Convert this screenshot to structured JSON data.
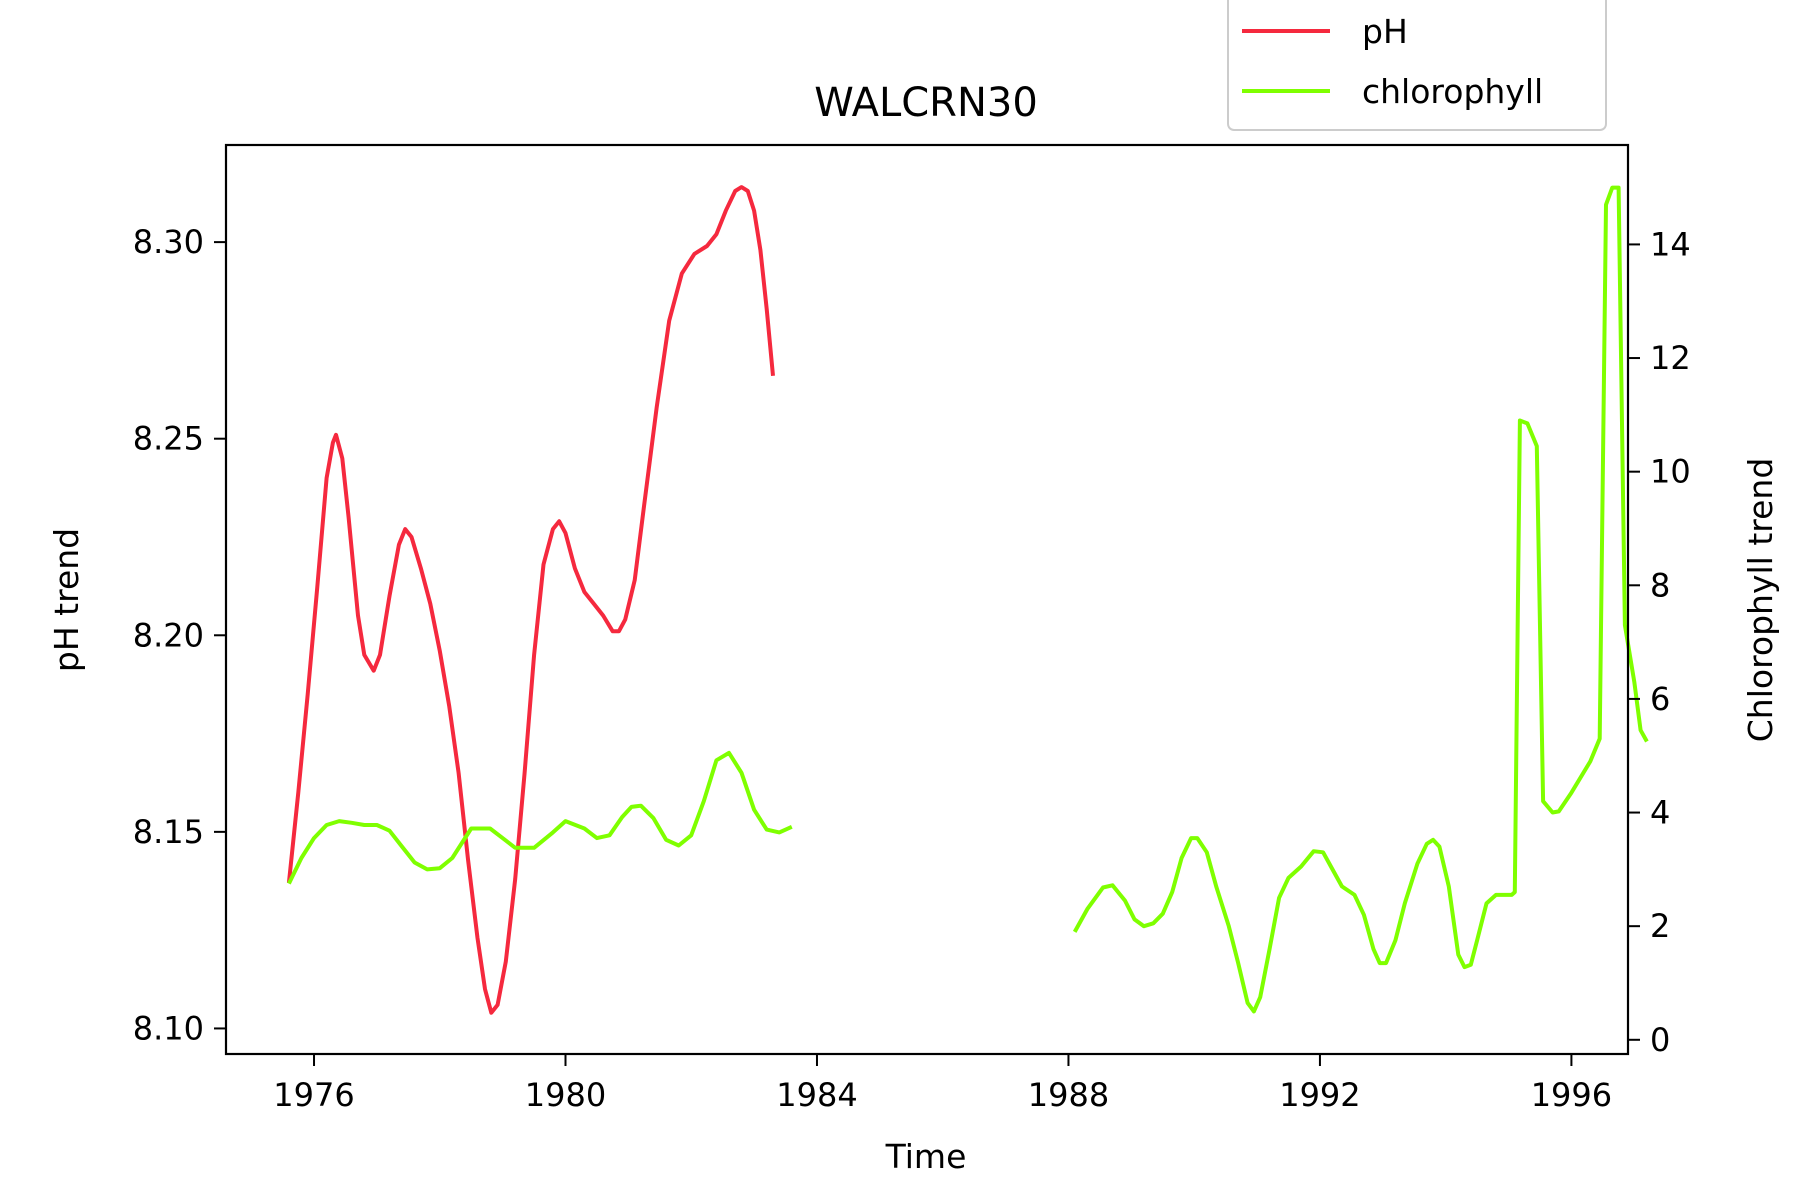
{
  "chart_data": {
    "type": "line",
    "title": "WALCRN30",
    "xlabel": "Time",
    "ylabel_left": "pH trend",
    "ylabel_right": "Chlorophyll trend",
    "xlim": [
      1974.6,
      1996.9
    ],
    "ylim_left": [
      8.0935,
      8.3247
    ],
    "ylim_right": [
      -0.25,
      15.75
    ],
    "x_ticks": [
      1976,
      1980,
      1984,
      1988,
      1992,
      1996
    ],
    "y_ticks_left": [
      "8.10",
      "8.15",
      "8.20",
      "8.25",
      "8.30"
    ],
    "y_ticks_right": [
      0,
      2,
      4,
      6,
      8,
      10,
      12,
      14
    ],
    "grid": false,
    "legend": {
      "placement": "top-right",
      "entries": [
        "pH",
        "chlorophyll"
      ]
    },
    "series": [
      {
        "name": "pH",
        "axis": "left",
        "color": "#f5293e",
        "points": [
          [
            1975.6,
            8.137
          ],
          [
            1975.75,
            8.16
          ],
          [
            1975.9,
            8.185
          ],
          [
            1976.05,
            8.212
          ],
          [
            1976.2,
            8.24
          ],
          [
            1976.3,
            8.249
          ],
          [
            1976.35,
            8.251
          ],
          [
            1976.45,
            8.245
          ],
          [
            1976.55,
            8.23
          ],
          [
            1976.7,
            8.205
          ],
          [
            1976.8,
            8.195
          ],
          [
            1976.95,
            8.191
          ],
          [
            1977.05,
            8.195
          ],
          [
            1977.2,
            8.21
          ],
          [
            1977.35,
            8.223
          ],
          [
            1977.45,
            8.227
          ],
          [
            1977.55,
            8.225
          ],
          [
            1977.7,
            8.217
          ],
          [
            1977.85,
            8.208
          ],
          [
            1978.0,
            8.196
          ],
          [
            1978.15,
            8.182
          ],
          [
            1978.3,
            8.165
          ],
          [
            1978.45,
            8.143
          ],
          [
            1978.6,
            8.123
          ],
          [
            1978.72,
            8.11
          ],
          [
            1978.82,
            8.104
          ],
          [
            1978.92,
            8.106
          ],
          [
            1979.05,
            8.117
          ],
          [
            1979.2,
            8.138
          ],
          [
            1979.35,
            8.165
          ],
          [
            1979.5,
            8.195
          ],
          [
            1979.65,
            8.218
          ],
          [
            1979.8,
            8.227
          ],
          [
            1979.9,
            8.229
          ],
          [
            1980.0,
            8.226
          ],
          [
            1980.15,
            8.217
          ],
          [
            1980.3,
            8.211
          ],
          [
            1980.45,
            8.208
          ],
          [
            1980.6,
            8.205
          ],
          [
            1980.75,
            8.201
          ],
          [
            1980.85,
            8.201
          ],
          [
            1980.95,
            8.204
          ],
          [
            1981.1,
            8.214
          ],
          [
            1981.25,
            8.233
          ],
          [
            1981.45,
            8.258
          ],
          [
            1981.65,
            8.28
          ],
          [
            1981.85,
            8.292
          ],
          [
            1982.05,
            8.297
          ],
          [
            1982.25,
            8.299
          ],
          [
            1982.4,
            8.302
          ],
          [
            1982.55,
            8.308
          ],
          [
            1982.7,
            8.313
          ],
          [
            1982.8,
            8.314
          ],
          [
            1982.9,
            8.313
          ],
          [
            1983.0,
            8.308
          ],
          [
            1983.1,
            8.298
          ],
          [
            1983.2,
            8.283
          ],
          [
            1983.3,
            8.266
          ]
        ]
      },
      {
        "name": "chlorophyll",
        "axis": "right",
        "color": "#7fff00",
        "segments": [
          [
            [
              1975.6,
              2.75
            ],
            [
              1975.8,
              3.2
            ],
            [
              1976.0,
              3.55
            ],
            [
              1976.2,
              3.78
            ],
            [
              1976.4,
              3.85
            ],
            [
              1976.6,
              3.82
            ],
            [
              1976.8,
              3.78
            ],
            [
              1977.0,
              3.78
            ],
            [
              1977.2,
              3.68
            ],
            [
              1977.4,
              3.4
            ],
            [
              1977.6,
              3.12
            ],
            [
              1977.8,
              3.0
            ],
            [
              1978.0,
              3.02
            ],
            [
              1978.2,
              3.2
            ],
            [
              1978.5,
              3.72
            ],
            [
              1978.8,
              3.72
            ],
            [
              1979.0,
              3.55
            ],
            [
              1979.2,
              3.38
            ],
            [
              1979.5,
              3.38
            ],
            [
              1979.8,
              3.65
            ],
            [
              1980.0,
              3.85
            ],
            [
              1980.3,
              3.72
            ],
            [
              1980.5,
              3.55
            ],
            [
              1980.7,
              3.6
            ],
            [
              1980.9,
              3.92
            ],
            [
              1981.05,
              4.1
            ],
            [
              1981.2,
              4.12
            ],
            [
              1981.4,
              3.9
            ],
            [
              1981.6,
              3.52
            ],
            [
              1981.8,
              3.42
            ],
            [
              1982.0,
              3.6
            ],
            [
              1982.2,
              4.2
            ],
            [
              1982.4,
              4.92
            ],
            [
              1982.6,
              5.05
            ],
            [
              1982.8,
              4.7
            ],
            [
              1983.0,
              4.05
            ],
            [
              1983.2,
              3.7
            ],
            [
              1983.4,
              3.65
            ],
            [
              1983.6,
              3.75
            ]
          ],
          [
            [
              1988.1,
              1.9
            ],
            [
              1988.3,
              2.3
            ],
            [
              1988.55,
              2.68
            ],
            [
              1988.7,
              2.72
            ],
            [
              1988.9,
              2.45
            ],
            [
              1989.05,
              2.12
            ],
            [
              1989.2,
              2.0
            ],
            [
              1989.35,
              2.05
            ],
            [
              1989.5,
              2.22
            ],
            [
              1989.65,
              2.6
            ],
            [
              1989.8,
              3.2
            ],
            [
              1989.95,
              3.55
            ],
            [
              1990.05,
              3.55
            ],
            [
              1990.2,
              3.3
            ],
            [
              1990.35,
              2.7
            ],
            [
              1990.55,
              2.0
            ],
            [
              1990.7,
              1.35
            ],
            [
              1990.85,
              0.65
            ],
            [
              1990.95,
              0.5
            ],
            [
              1991.05,
              0.75
            ],
            [
              1991.2,
              1.6
            ],
            [
              1991.35,
              2.5
            ],
            [
              1991.5,
              2.85
            ],
            [
              1991.7,
              3.05
            ],
            [
              1991.9,
              3.32
            ],
            [
              1992.05,
              3.3
            ],
            [
              1992.2,
              3.0
            ],
            [
              1992.35,
              2.7
            ],
            [
              1992.55,
              2.55
            ],
            [
              1992.7,
              2.2
            ],
            [
              1992.85,
              1.6
            ],
            [
              1992.95,
              1.35
            ],
            [
              1993.05,
              1.35
            ],
            [
              1993.2,
              1.75
            ],
            [
              1993.35,
              2.4
            ],
            [
              1993.55,
              3.1
            ],
            [
              1993.7,
              3.45
            ],
            [
              1993.8,
              3.52
            ],
            [
              1993.9,
              3.4
            ],
            [
              1994.05,
              2.7
            ],
            [
              1994.2,
              1.5
            ],
            [
              1994.3,
              1.28
            ],
            [
              1994.4,
              1.32
            ],
            [
              1994.5,
              1.75
            ],
            [
              1994.65,
              2.4
            ],
            [
              1994.8,
              2.55
            ],
            [
              1995.05,
              2.55
            ],
            [
              1995.1,
              2.6
            ],
            [
              1995.18,
              10.9
            ],
            [
              1995.3,
              10.85
            ],
            [
              1995.45,
              10.45
            ],
            [
              1995.55,
              4.2
            ],
            [
              1995.7,
              4.0
            ],
            [
              1995.8,
              4.02
            ],
            [
              1996.0,
              4.35
            ],
            [
              1996.3,
              4.9
            ],
            [
              1996.45,
              5.3
            ],
            [
              1996.55,
              14.7
            ],
            [
              1996.65,
              15.0
            ],
            [
              1996.75,
              15.0
            ],
            [
              1996.85,
              7.3
            ],
            [
              1997.0,
              6.3
            ],
            [
              1997.1,
              5.45
            ],
            [
              1997.2,
              5.25
            ]
          ]
        ]
      }
    ]
  }
}
